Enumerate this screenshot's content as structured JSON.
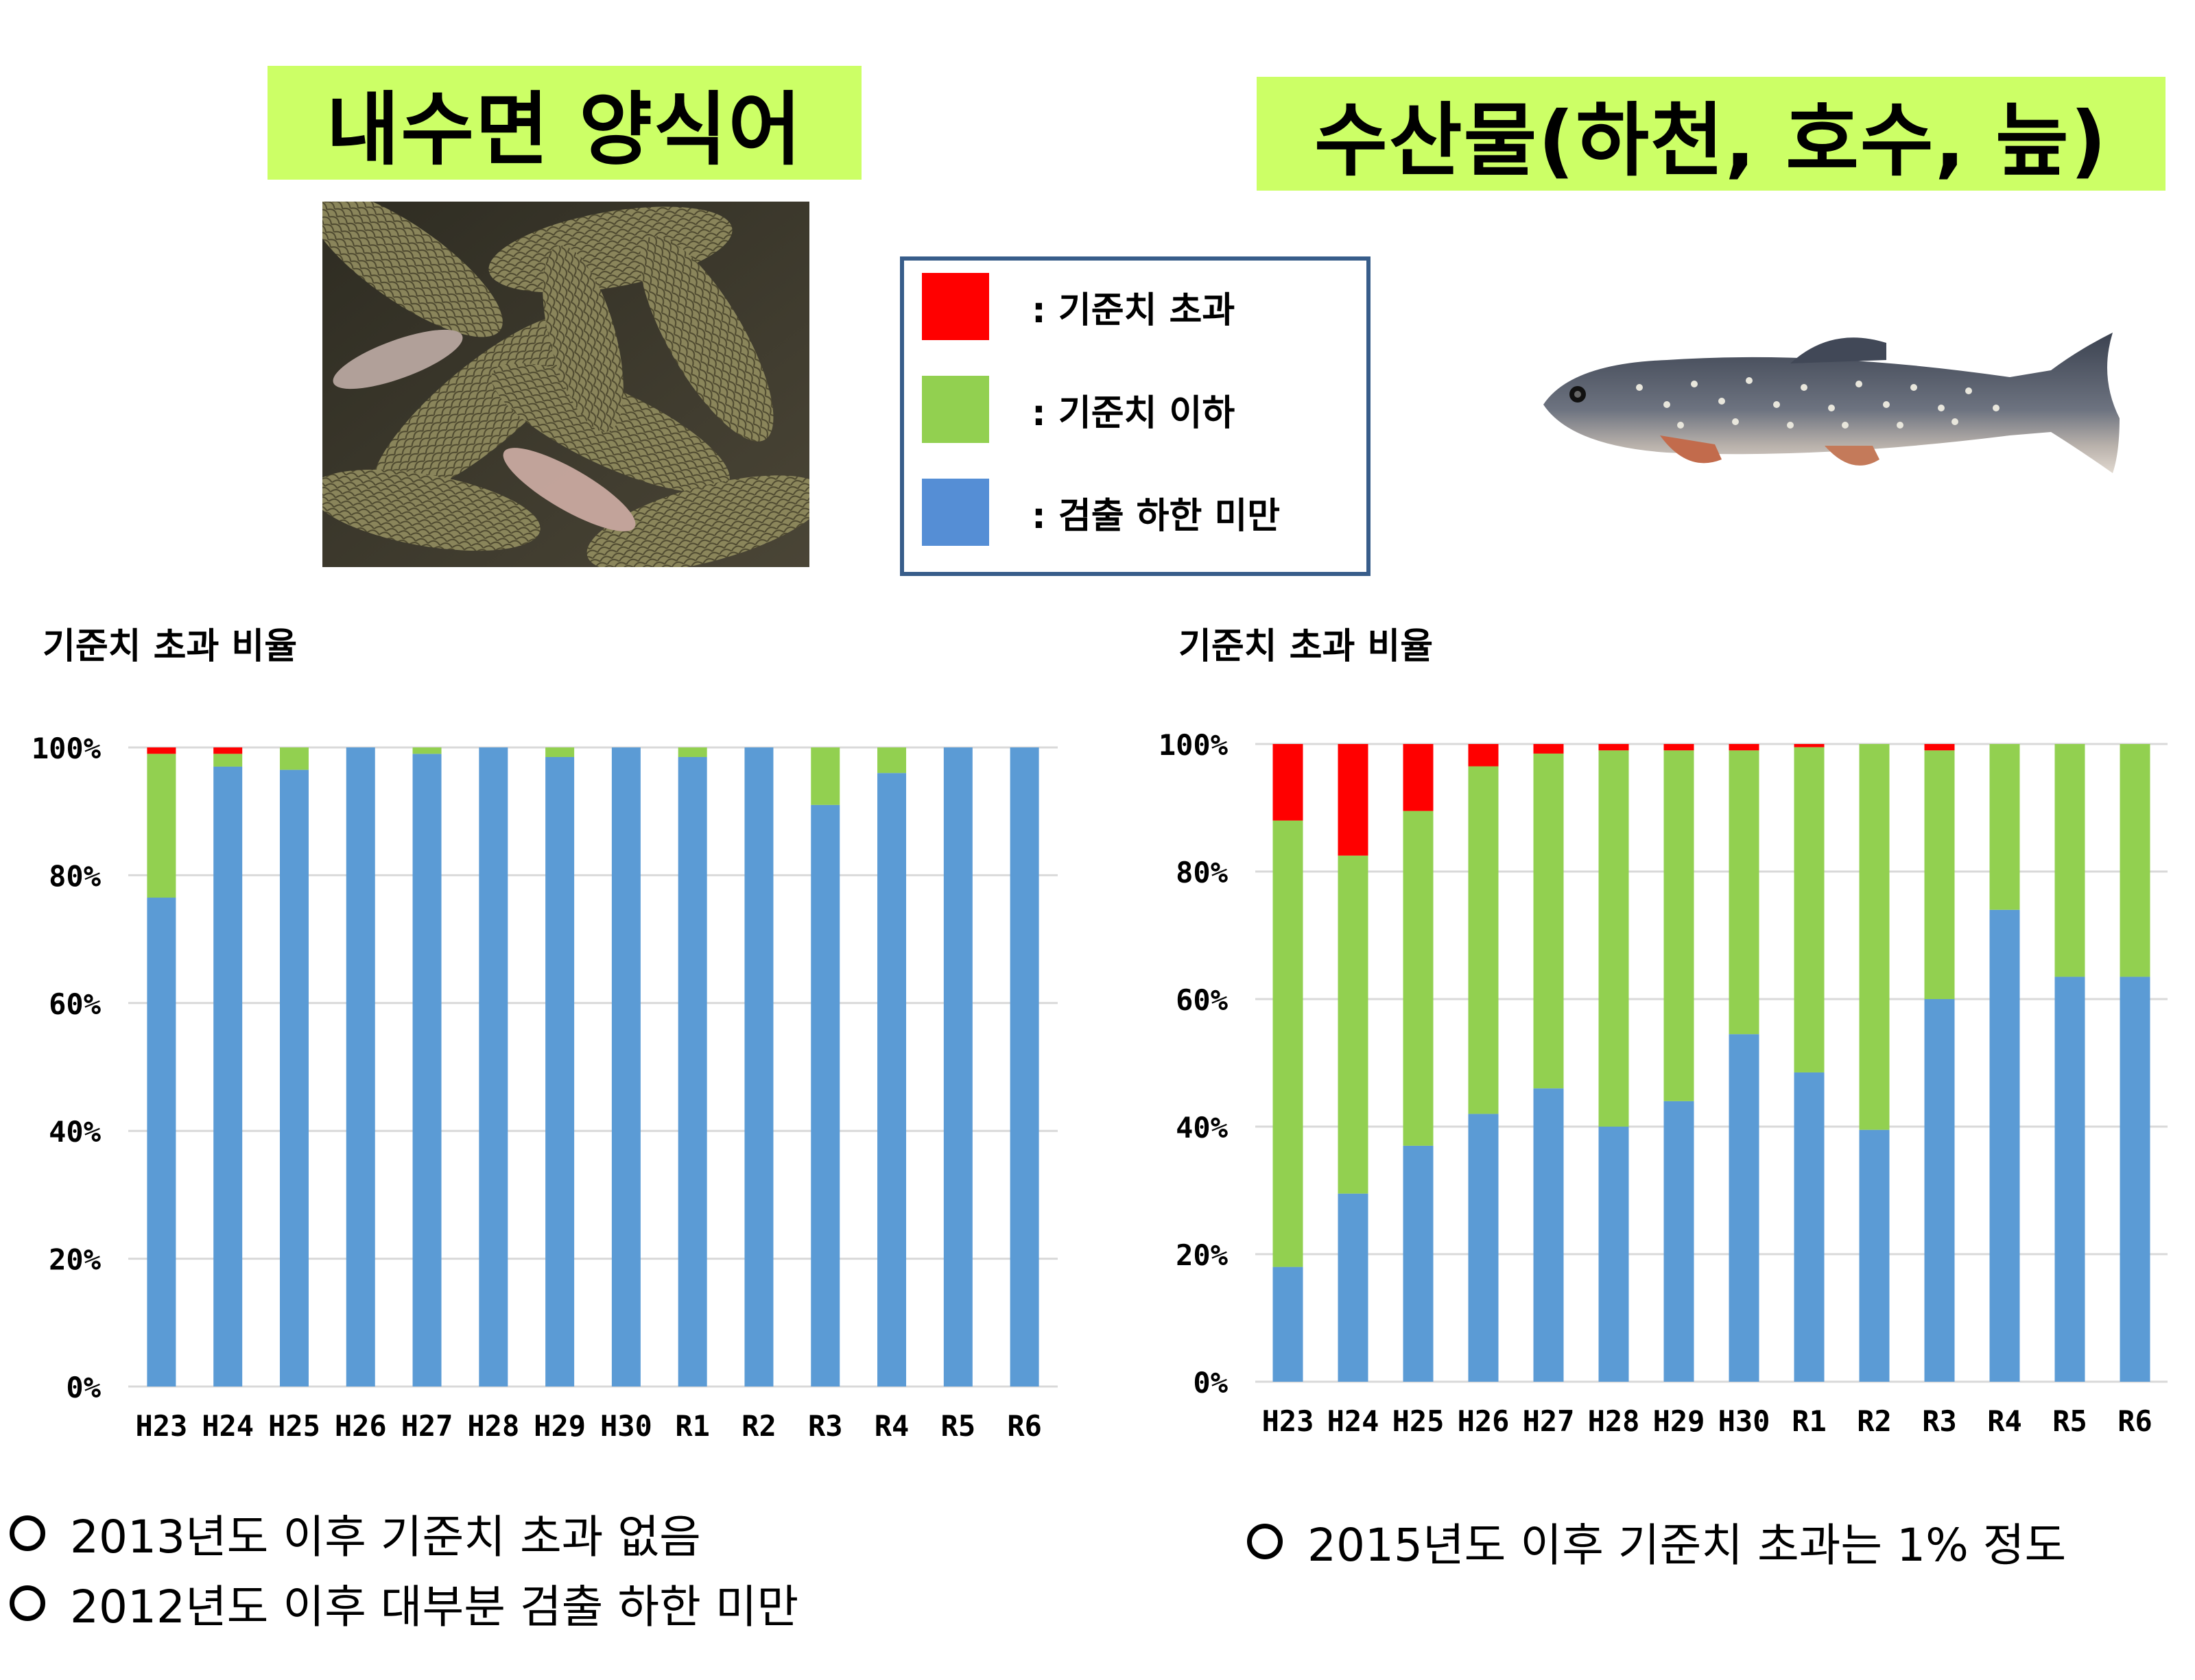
{
  "titles": {
    "left": "내수면 양식어",
    "right": "수산물(하천, 호수, 늪)"
  },
  "legend": {
    "items": [
      {
        "label": ": 기준치 초과",
        "color": "#ff0000"
      },
      {
        "label": ": 기준치 이하",
        "color": "#92d050"
      },
      {
        "label": ": 검출 하한 미만",
        "color": "#558ed5"
      }
    ]
  },
  "chart_titles": {
    "left": "기준치 초과 비율",
    "right": "기준치 초과 비율"
  },
  "notes": {
    "left": [
      "2013년도 이후 기준치 초과 없음",
      "2012년도 이후 대부분 검출 하한 미만"
    ],
    "right": [
      "2015년도 이후 기준치 초과는 1% 정도"
    ]
  },
  "chart_data": [
    {
      "type": "bar",
      "stacked": true,
      "title": "기준치 초과 비율",
      "categories": [
        "H23",
        "H24",
        "H25",
        "H26",
        "H27",
        "H28",
        "H29",
        "H30",
        "R1",
        "R2",
        "R3",
        "R4",
        "R5",
        "R6"
      ],
      "y_ticks": [
        "0%",
        "20%",
        "40%",
        "60%",
        "80%",
        "100%"
      ],
      "ylim": [
        0,
        100
      ],
      "grid": true,
      "series": [
        {
          "key": "below_detection",
          "color": "#5b9bd5",
          "values": [
            76.5,
            97,
            96.5,
            100,
            99,
            100,
            98.5,
            100,
            98.5,
            100,
            91,
            96,
            100,
            100
          ]
        },
        {
          "key": "below_limit",
          "color": "#92d050",
          "values": [
            22.5,
            2,
            3.5,
            0,
            1,
            0,
            1.5,
            0,
            1.5,
            0,
            9,
            4,
            0,
            0
          ]
        },
        {
          "key": "exceeds_limit",
          "color": "#ff0000",
          "values": [
            1,
            1,
            0,
            0,
            0,
            0,
            0,
            0,
            0,
            0,
            0,
            0,
            0,
            0
          ]
        }
      ]
    },
    {
      "type": "bar",
      "stacked": true,
      "title": "기준치 초과 비율",
      "categories": [
        "H23",
        "H24",
        "H25",
        "H26",
        "H27",
        "H28",
        "H29",
        "H30",
        "R1",
        "R2",
        "R3",
        "R4",
        "R5",
        "R6"
      ],
      "y_ticks": [
        "0%",
        "20%",
        "40%",
        "60%",
        "80%",
        "100%"
      ],
      "ylim": [
        0,
        100
      ],
      "grid": true,
      "series": [
        {
          "key": "below_detection",
          "color": "#5b9bd5",
          "values": [
            18,
            29.5,
            37,
            42,
            46,
            40,
            44,
            54.5,
            48.5,
            39.5,
            60,
            74,
            63.5,
            63.5
          ]
        },
        {
          "key": "below_limit",
          "color": "#92d050",
          "values": [
            70,
            53,
            52.5,
            54.5,
            52.5,
            59,
            55,
            44.5,
            51,
            60.5,
            39,
            26,
            36.5,
            36.5
          ]
        },
        {
          "key": "exceeds_limit",
          "color": "#ff0000",
          "values": [
            12,
            17.5,
            10.5,
            3.5,
            1.5,
            1,
            1,
            1,
            0.5,
            0,
            1,
            0,
            0,
            0
          ]
        }
      ]
    }
  ]
}
